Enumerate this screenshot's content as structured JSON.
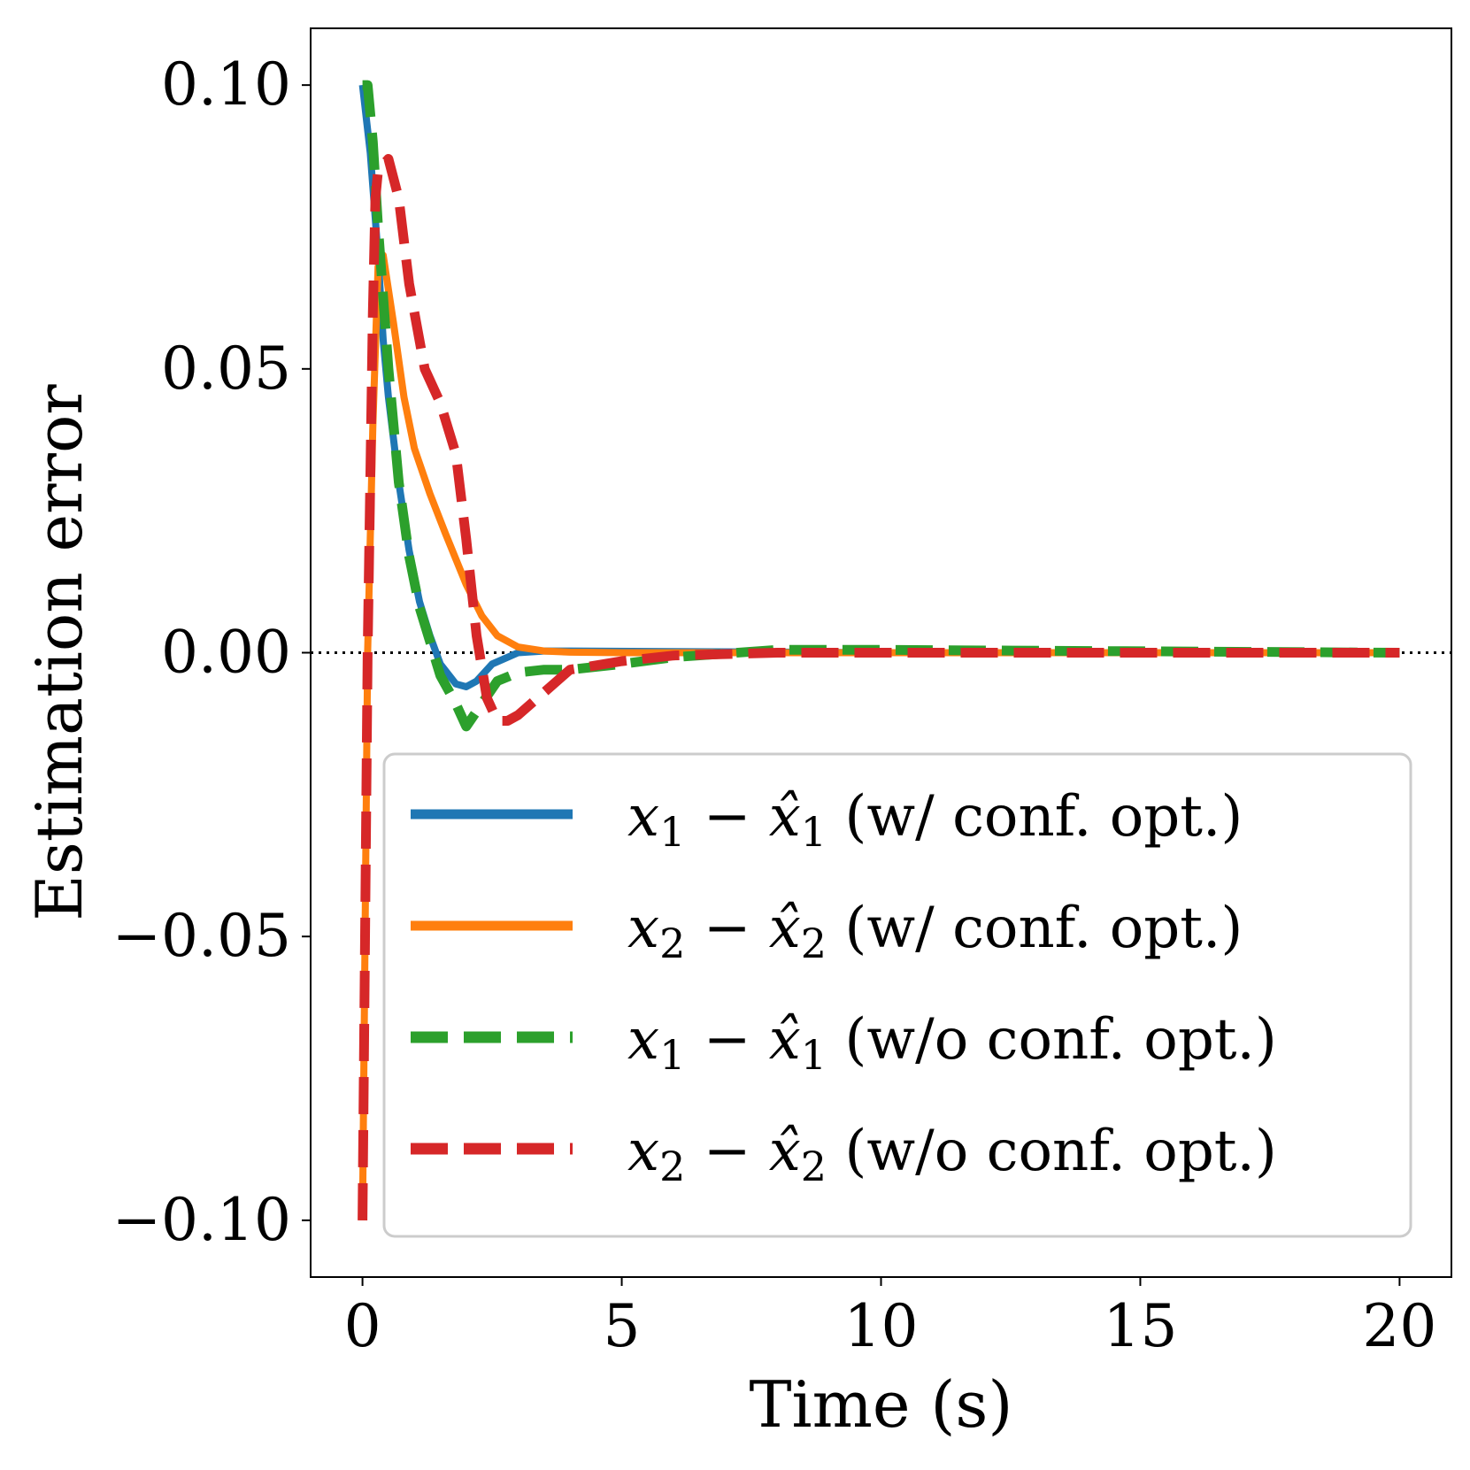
{
  "chart_data": {
    "type": "line",
    "title": "",
    "xlabel": "Time (s)",
    "ylabel": "Estimation error",
    "xlim": [
      -1,
      21
    ],
    "ylim": [
      -0.11,
      0.11
    ],
    "xticks": [
      0,
      5,
      10,
      15,
      20
    ],
    "xtick_labels": [
      "0",
      "5",
      "10",
      "15",
      "20"
    ],
    "yticks": [
      0.1,
      0.05,
      0.0,
      -0.05,
      -0.1
    ],
    "ytick_labels": [
      "0.10",
      "0.05",
      "0.00",
      "−0.05",
      "−0.10"
    ],
    "grid": false,
    "legend_position": "lower-right",
    "reference_line": {
      "y": 0.0,
      "style": "dotted",
      "color": "#000000"
    },
    "series": [
      {
        "name": "x1 − x̂1 (w/ conf. opt.)",
        "legend": {
          "var": "x",
          "sub": "1",
          "op": " − ",
          "hatvar": "x̂",
          "hatsub": "1",
          "desc": " (w/ conf. opt.)"
        },
        "color": "#1f77b4",
        "style": "solid",
        "x": [
          0,
          0.15,
          0.3,
          0.4,
          0.5,
          0.7,
          0.9,
          1.1,
          1.3,
          1.5,
          1.8,
          2.0,
          2.2,
          2.5,
          3.0,
          3.5,
          4.0,
          6.0,
          10.0,
          20.0
        ],
        "y": [
          0.1,
          0.088,
          0.07,
          0.055,
          0.045,
          0.03,
          0.018,
          0.009,
          0.003,
          -0.002,
          -0.0055,
          -0.006,
          -0.005,
          -0.002,
          0.0,
          0.0003,
          0.0003,
          0.0002,
          0.0,
          0.0
        ]
      },
      {
        "name": "x2 − x̂2 (w/ conf. opt.)",
        "legend": {
          "var": "x",
          "sub": "2",
          "op": " − ",
          "hatvar": "x̂",
          "hatsub": "2",
          "desc": " (w/ conf. opt.)"
        },
        "color": "#ff7f0e",
        "style": "solid",
        "x": [
          0,
          0.1,
          0.2,
          0.3,
          0.4,
          0.6,
          0.8,
          1.0,
          1.3,
          1.6,
          2.0,
          2.3,
          2.6,
          3.0,
          3.5,
          4.0,
          5.0,
          7.0,
          10.0,
          20.0
        ],
        "y": [
          -0.1,
          0.0,
          0.04,
          0.068,
          0.07,
          0.058,
          0.045,
          0.036,
          0.028,
          0.021,
          0.012,
          0.0065,
          0.003,
          0.001,
          0.0003,
          0.0001,
          0.0,
          0.0,
          0.0,
          0.0
        ]
      },
      {
        "name": "x1 − x̂1 (w/o conf. opt.)",
        "legend": {
          "var": "x",
          "sub": "1",
          "op": " − ",
          "hatvar": "x̂",
          "hatsub": "1",
          "desc": " (w/o conf. opt.)"
        },
        "color": "#2ca02c",
        "style": "dashed",
        "x": [
          0,
          0.1,
          0.2,
          0.3,
          0.5,
          0.7,
          0.9,
          1.1,
          1.3,
          1.5,
          1.8,
          2.0,
          2.3,
          2.6,
          3.0,
          3.5,
          4.0,
          5.0,
          6.0,
          8.0,
          10.0,
          20.0
        ],
        "y": [
          0.1,
          0.1,
          0.09,
          0.075,
          0.05,
          0.03,
          0.017,
          0.008,
          0.002,
          -0.004,
          -0.009,
          -0.013,
          -0.009,
          -0.005,
          -0.0035,
          -0.003,
          -0.003,
          -0.002,
          -0.0008,
          0.0005,
          0.0005,
          0.0
        ]
      },
      {
        "name": "x2 − x̂2 (w/o conf. opt.)",
        "legend": {
          "var": "x",
          "sub": "2",
          "op": " − ",
          "hatvar": "x̂",
          "hatsub": "2",
          "desc": " (w/o conf. opt.)"
        },
        "color": "#d62728",
        "style": "dashed",
        "x": [
          0,
          0.1,
          0.2,
          0.25,
          0.3,
          0.5,
          0.7,
          0.9,
          1.2,
          1.5,
          1.8,
          2.0,
          2.2,
          2.4,
          2.6,
          2.8,
          3.0,
          3.5,
          4.0,
          5.0,
          6.0,
          8.0,
          10.0,
          20.0
        ],
        "y": [
          -0.1,
          0.0,
          0.06,
          0.08,
          0.085,
          0.087,
          0.08,
          0.065,
          0.05,
          0.044,
          0.035,
          0.02,
          0.003,
          -0.008,
          -0.012,
          -0.012,
          -0.011,
          -0.007,
          -0.003,
          -0.0015,
          -0.0005,
          0.0,
          0.0,
          0.0
        ]
      }
    ]
  }
}
